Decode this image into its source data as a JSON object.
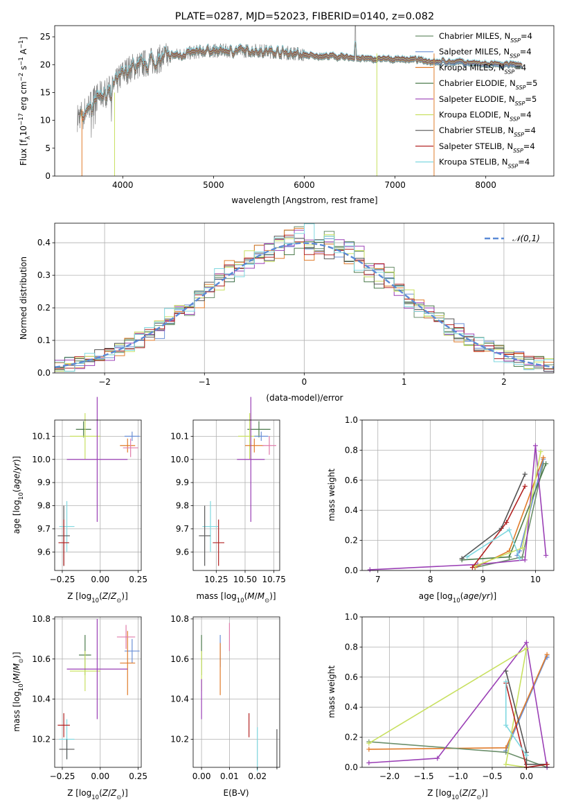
{
  "chart_data": [
    {
      "id": "spectrum",
      "type": "line",
      "title": "PLATE=0287, MJD=52023, FIBERID=0140, z=0.082",
      "xlabel": "wavelength [Angstrom, rest frame]",
      "ylabel": "Flux [f_λ10^-17 erg cm^-2 s^-1 A^-1]",
      "xlim": [
        3250,
        8750
      ],
      "ylim": [
        0,
        27
      ],
      "xticks": [
        4000,
        5000,
        6000,
        7000,
        8000
      ],
      "yticks": [
        0,
        5,
        10,
        15,
        20,
        25
      ],
      "legend_position": "right",
      "grid": false,
      "series": [
        {
          "name": "Chabrier MILES, N_SSP=4",
          "color": "#6b8f6b"
        },
        {
          "name": "Salpeter MILES, N_SSP=4",
          "color": "#6a8fd6"
        },
        {
          "name": "Kroupa MILES, N_SSP=4",
          "color": "#e07b2a"
        },
        {
          "name": "Chabrier ELODIE, N_SSP=5",
          "color": "#4b7a4b"
        },
        {
          "name": "Salpeter ELODIE, N_SSP=5",
          "color": "#9a3fb5"
        },
        {
          "name": "Kroupa ELODIE, N_SSP=4",
          "color": "#c8e060"
        },
        {
          "name": "Chabrier STELIB, N_SSP=4",
          "color": "#555555"
        },
        {
          "name": "Salpeter STELIB, N_SSP=4",
          "color": "#b22222"
        },
        {
          "name": "Kroupa STELIB, N_SSP=4",
          "color": "#7fd8e0"
        }
      ],
      "data_color": "#808080",
      "data_continuum": {
        "x": [
          3500,
          3600,
          3700,
          3800,
          3900,
          4000,
          4100,
          4200,
          4300,
          4400,
          4500,
          4700,
          4900,
          5100,
          5300,
          5500,
          5700,
          5900,
          6100,
          6300,
          6500,
          6700,
          6900,
          7100,
          7300,
          7500,
          7700,
          8000,
          8300
        ],
        "y": [
          10.5,
          12,
          14,
          15,
          16,
          18.5,
          19.5,
          20,
          20.5,
          21,
          21.5,
          22,
          22.5,
          22.5,
          22.5,
          22.5,
          22.3,
          22,
          21.5,
          21.5,
          21.3,
          21,
          21,
          21,
          20.8,
          20.5,
          20.5,
          20,
          20
        ]
      }
    },
    {
      "id": "residuals",
      "type": "histogram",
      "xlabel": "(data-model)/error",
      "ylabel": "Normed distribution",
      "xlim": [
        -2.5,
        2.5
      ],
      "ylim": [
        0,
        0.46
      ],
      "xticks": [
        -2,
        -1,
        0,
        1,
        2
      ],
      "yticks": [
        0.0,
        0.1,
        0.2,
        0.3,
        0.4
      ],
      "grid": true,
      "legend_position": "top-right",
      "reference_curve": {
        "name": "𝒩(0,1)",
        "color": "#5b8ad6",
        "mean": 0,
        "sigma": 1
      }
    },
    {
      "id": "age_vs_Z",
      "type": "errorbar",
      "xlabel": "Z [log10(Z/Z⊙)]",
      "ylabel": "age [log10(age/yr)]",
      "xlim": [
        -0.3,
        0.27
      ],
      "ylim": [
        9.52,
        10.17
      ],
      "xticks": [
        -0.25,
        0.0,
        0.25
      ],
      "yticks": [
        9.6,
        9.7,
        9.8,
        9.9,
        10.0,
        10.1
      ],
      "grid": true,
      "points": [
        {
          "color": "#4b7a4b",
          "x": -0.11,
          "xerr": 0.05,
          "y": 10.13,
          "yerr": 0.035
        },
        {
          "color": "#c8e060",
          "x": -0.1,
          "xerr": 0.1,
          "y": 10.1,
          "yerr": 0.1
        },
        {
          "color": "#6a8fd6",
          "x": 0.21,
          "xerr": 0.05,
          "y": 10.1,
          "yerr": 0.02
        },
        {
          "color": "#e07b2a",
          "x": 0.18,
          "xerr": 0.05,
          "y": 10.06,
          "yerr": 0.03
        },
        {
          "color": "#e07baa",
          "x": 0.2,
          "xerr": 0.05,
          "y": 10.05,
          "yerr": 0.04
        },
        {
          "color": "#9a3fb5",
          "x": -0.02,
          "xerr": 0.2,
          "y": 10.0,
          "yerr": 0.27
        },
        {
          "color": "#7fd8e0",
          "x": -0.22,
          "xerr": 0.05,
          "y": 9.71,
          "yerr": 0.11
        },
        {
          "color": "#555555",
          "x": -0.24,
          "xerr": 0.04,
          "y": 9.67,
          "yerr": 0.13
        },
        {
          "color": "#b22222",
          "x": -0.24,
          "xerr": 0.035,
          "y": 9.64,
          "yerr": 0.1
        }
      ]
    },
    {
      "id": "age_vs_mass",
      "type": "errorbar",
      "xlabel": "mass [log10(M/M⊙)]",
      "ylabel": "",
      "xlim": [
        10.05,
        10.8
      ],
      "ylim": [
        9.52,
        10.17
      ],
      "xticks": [
        10.25,
        10.5,
        10.75
      ],
      "yticks": [
        9.6,
        9.7,
        9.8,
        9.9,
        10.0,
        10.1
      ],
      "grid": true,
      "points": [
        {
          "color": "#4b7a4b",
          "x": 10.62,
          "xerr": 0.1,
          "y": 10.13,
          "yerr": 0.035
        },
        {
          "color": "#c8e060",
          "x": 10.54,
          "xerr": 0.1,
          "y": 10.1,
          "yerr": 0.1
        },
        {
          "color": "#6a8fd6",
          "x": 10.64,
          "xerr": 0.06,
          "y": 10.1,
          "yerr": 0.02
        },
        {
          "color": "#e07b2a",
          "x": 10.58,
          "xerr": 0.08,
          "y": 10.06,
          "yerr": 0.03
        },
        {
          "color": "#e07baa",
          "x": 10.71,
          "xerr": 0.06,
          "y": 10.06,
          "yerr": 0.04
        },
        {
          "color": "#9a3fb5",
          "x": 10.55,
          "xerr": 0.12,
          "y": 10.0,
          "yerr": 0.27
        },
        {
          "color": "#7fd8e0",
          "x": 10.2,
          "xerr": 0.07,
          "y": 9.71,
          "yerr": 0.11
        },
        {
          "color": "#555555",
          "x": 10.15,
          "xerr": 0.05,
          "y": 9.67,
          "yerr": 0.13
        },
        {
          "color": "#b22222",
          "x": 10.27,
          "xerr": 0.05,
          "y": 9.64,
          "yerr": 0.1
        }
      ]
    },
    {
      "id": "weight_vs_age",
      "type": "line",
      "xlabel": "age [log10(age/yr)]",
      "ylabel": "mass weight",
      "xlim": [
        6.7,
        10.35
      ],
      "ylim": [
        0,
        1.0
      ],
      "xticks": [
        7,
        8,
        9,
        10
      ],
      "yticks": [
        0.0,
        0.2,
        0.4,
        0.6,
        0.8,
        1.0
      ],
      "grid": true,
      "series": [
        {
          "color": "#6b8f6b",
          "x": [
            8.85,
            9.75,
            10.15
          ],
          "y": [
            0.02,
            0.09,
            0.71
          ]
        },
        {
          "color": "#6a8fd6",
          "x": [
            9.65,
            9.7,
            10.15
          ],
          "y": [
            0.1,
            0.13,
            0.74
          ]
        },
        {
          "color": "#e07b2a",
          "x": [
            8.85,
            9.5,
            10.15
          ],
          "y": [
            0.02,
            0.13,
            0.75
          ]
        },
        {
          "color": "#4b7a4b",
          "x": [
            8.6,
            9.5,
            10.2
          ],
          "y": [
            0.07,
            0.09,
            0.71
          ]
        },
        {
          "color": "#9a3fb5",
          "x": [
            6.85,
            8.9,
            9.8,
            10.0,
            10.2
          ],
          "y": [
            0.005,
            0.04,
            0.07,
            0.83,
            0.1
          ]
        },
        {
          "color": "#c8e060",
          "x": [
            8.85,
            9.75,
            10.1
          ],
          "y": [
            0.03,
            0.15,
            0.79
          ]
        },
        {
          "color": "#555555",
          "x": [
            8.6,
            9.35,
            9.8
          ],
          "y": [
            0.08,
            0.28,
            0.64
          ]
        },
        {
          "color": "#b22222",
          "x": [
            8.8,
            9.45,
            9.8
          ],
          "y": [
            0.02,
            0.32,
            0.56
          ]
        },
        {
          "color": "#7fd8e0",
          "x": [
            8.7,
            9.5,
            9.7
          ],
          "y": [
            0.09,
            0.27,
            0.08
          ]
        }
      ]
    },
    {
      "id": "mass_vs_Z",
      "type": "errorbar",
      "xlabel": "Z [log10(Z/Z⊙)]",
      "ylabel": "mass [log10(M/M⊙)]",
      "xlim": [
        -0.3,
        0.27
      ],
      "ylim": [
        10.06,
        10.81
      ],
      "xticks": [
        -0.25,
        0.0,
        0.25
      ],
      "yticks": [
        10.2,
        10.4,
        10.6,
        10.8
      ],
      "grid": true,
      "points": [
        {
          "color": "#4b7a4b",
          "x": -0.1,
          "xerr": 0.04,
          "y": 10.62,
          "yerr": 0.1
        },
        {
          "color": "#c8e060",
          "x": -0.1,
          "xerr": 0.1,
          "y": 10.54,
          "yerr": 0.1
        },
        {
          "color": "#6a8fd6",
          "x": 0.21,
          "xerr": 0.05,
          "y": 10.64,
          "yerr": 0.06
        },
        {
          "color": "#e07b2a",
          "x": 0.18,
          "xerr": 0.05,
          "y": 10.58,
          "yerr": 0.16
        },
        {
          "color": "#e07baa",
          "x": 0.17,
          "xerr": 0.06,
          "y": 10.71,
          "yerr": 0.06
        },
        {
          "color": "#9a3fb5",
          "x": -0.02,
          "xerr": 0.2,
          "y": 10.55,
          "yerr": 0.25
        },
        {
          "color": "#7fd8e0",
          "x": -0.22,
          "xerr": 0.05,
          "y": 10.2,
          "yerr": 0.1
        },
        {
          "color": "#555555",
          "x": -0.22,
          "xerr": 0.05,
          "y": 10.15,
          "yerr": 0.05
        },
        {
          "color": "#b22222",
          "x": -0.24,
          "xerr": 0.04,
          "y": 10.27,
          "yerr": 0.06
        }
      ]
    },
    {
      "id": "mass_vs_ebv",
      "type": "errorbar",
      "xlabel": "E(B-V)",
      "ylabel": "",
      "xlim": [
        -0.003,
        0.028
      ],
      "ylim": [
        10.06,
        10.81
      ],
      "xticks": [
        0.0,
        0.01,
        0.02
      ],
      "yticks": [
        10.2,
        10.4,
        10.6,
        10.8
      ],
      "grid": true,
      "points": [
        {
          "color": "#4b7a4b",
          "x": 0.0,
          "xerr": 0,
          "y": 10.62,
          "yerr": 0.1
        },
        {
          "color": "#c8e060",
          "x": 0.0,
          "xerr": 0,
          "y": 10.54,
          "yerr": 0.1
        },
        {
          "color": "#9a3fb5",
          "x": 0.0,
          "xerr": 0,
          "y": 10.4,
          "yerr": 0.1
        },
        {
          "color": "#6a8fd6",
          "x": 0.0067,
          "xerr": 0,
          "y": 10.64,
          "yerr": 0.08
        },
        {
          "color": "#e07b2a",
          "x": 0.0067,
          "xerr": 0,
          "y": 10.55,
          "yerr": 0.13
        },
        {
          "color": "#e07baa",
          "x": 0.01,
          "xerr": 0,
          "y": 10.71,
          "yerr": 0.07
        },
        {
          "color": "#b22222",
          "x": 0.017,
          "xerr": 0,
          "y": 10.27,
          "yerr": 0.06
        },
        {
          "color": "#7fd8e0",
          "x": 0.02,
          "xerr": 0,
          "y": 10.15,
          "yerr": 0.11
        },
        {
          "color": "#555555",
          "x": 0.027,
          "xerr": 0,
          "y": 10.15,
          "yerr": 0.1
        }
      ]
    },
    {
      "id": "weight_vs_Z",
      "type": "line",
      "xlabel": "Z [log10(Z/Z⊙)]",
      "ylabel": "mass weight",
      "xlim": [
        -2.4,
        0.4
      ],
      "ylim": [
        0,
        1.0
      ],
      "xticks": [
        -2.0,
        -1.5,
        -1.0,
        -0.5,
        0.0
      ],
      "yticks": [
        0.0,
        0.2,
        0.4,
        0.6,
        0.8,
        1.0
      ],
      "grid": true,
      "series": [
        {
          "color": "#6a8fd6",
          "x": [
            -0.3,
            0.3,
            0.3
          ],
          "y": [
            0.11,
            0.74,
            0.73
          ]
        },
        {
          "color": "#e07b2a",
          "x": [
            -2.3,
            -0.3,
            0.3
          ],
          "y": [
            0.12,
            0.13,
            0.75
          ]
        },
        {
          "color": "#6b8f6b",
          "x": [
            -2.3,
            -0.3,
            0.3
          ],
          "y": [
            0.17,
            0.1,
            0.0
          ]
        },
        {
          "color": "#9a3fb5",
          "x": [
            -2.3,
            -1.3,
            0.0,
            0.3
          ],
          "y": [
            0.03,
            0.06,
            0.83,
            0.0
          ]
        },
        {
          "color": "#c8e060",
          "x": [
            -2.3,
            0.0,
            -0.3,
            0.0
          ],
          "y": [
            0.16,
            0.79,
            0.02,
            0.0
          ]
        },
        {
          "color": "#555555",
          "x": [
            -0.3,
            0.0,
            0.0,
            0.3
          ],
          "y": [
            0.64,
            0.1,
            0.02,
            0.02
          ]
        },
        {
          "color": "#b22222",
          "x": [
            -0.3,
            0.0,
            0.0,
            0.3
          ],
          "y": [
            0.56,
            0.0,
            0.0,
            0.02
          ]
        },
        {
          "color": "#7fd8e0",
          "x": [
            -0.3,
            -0.3,
            0.0
          ],
          "y": [
            0.57,
            0.28,
            0.08
          ]
        }
      ]
    }
  ]
}
